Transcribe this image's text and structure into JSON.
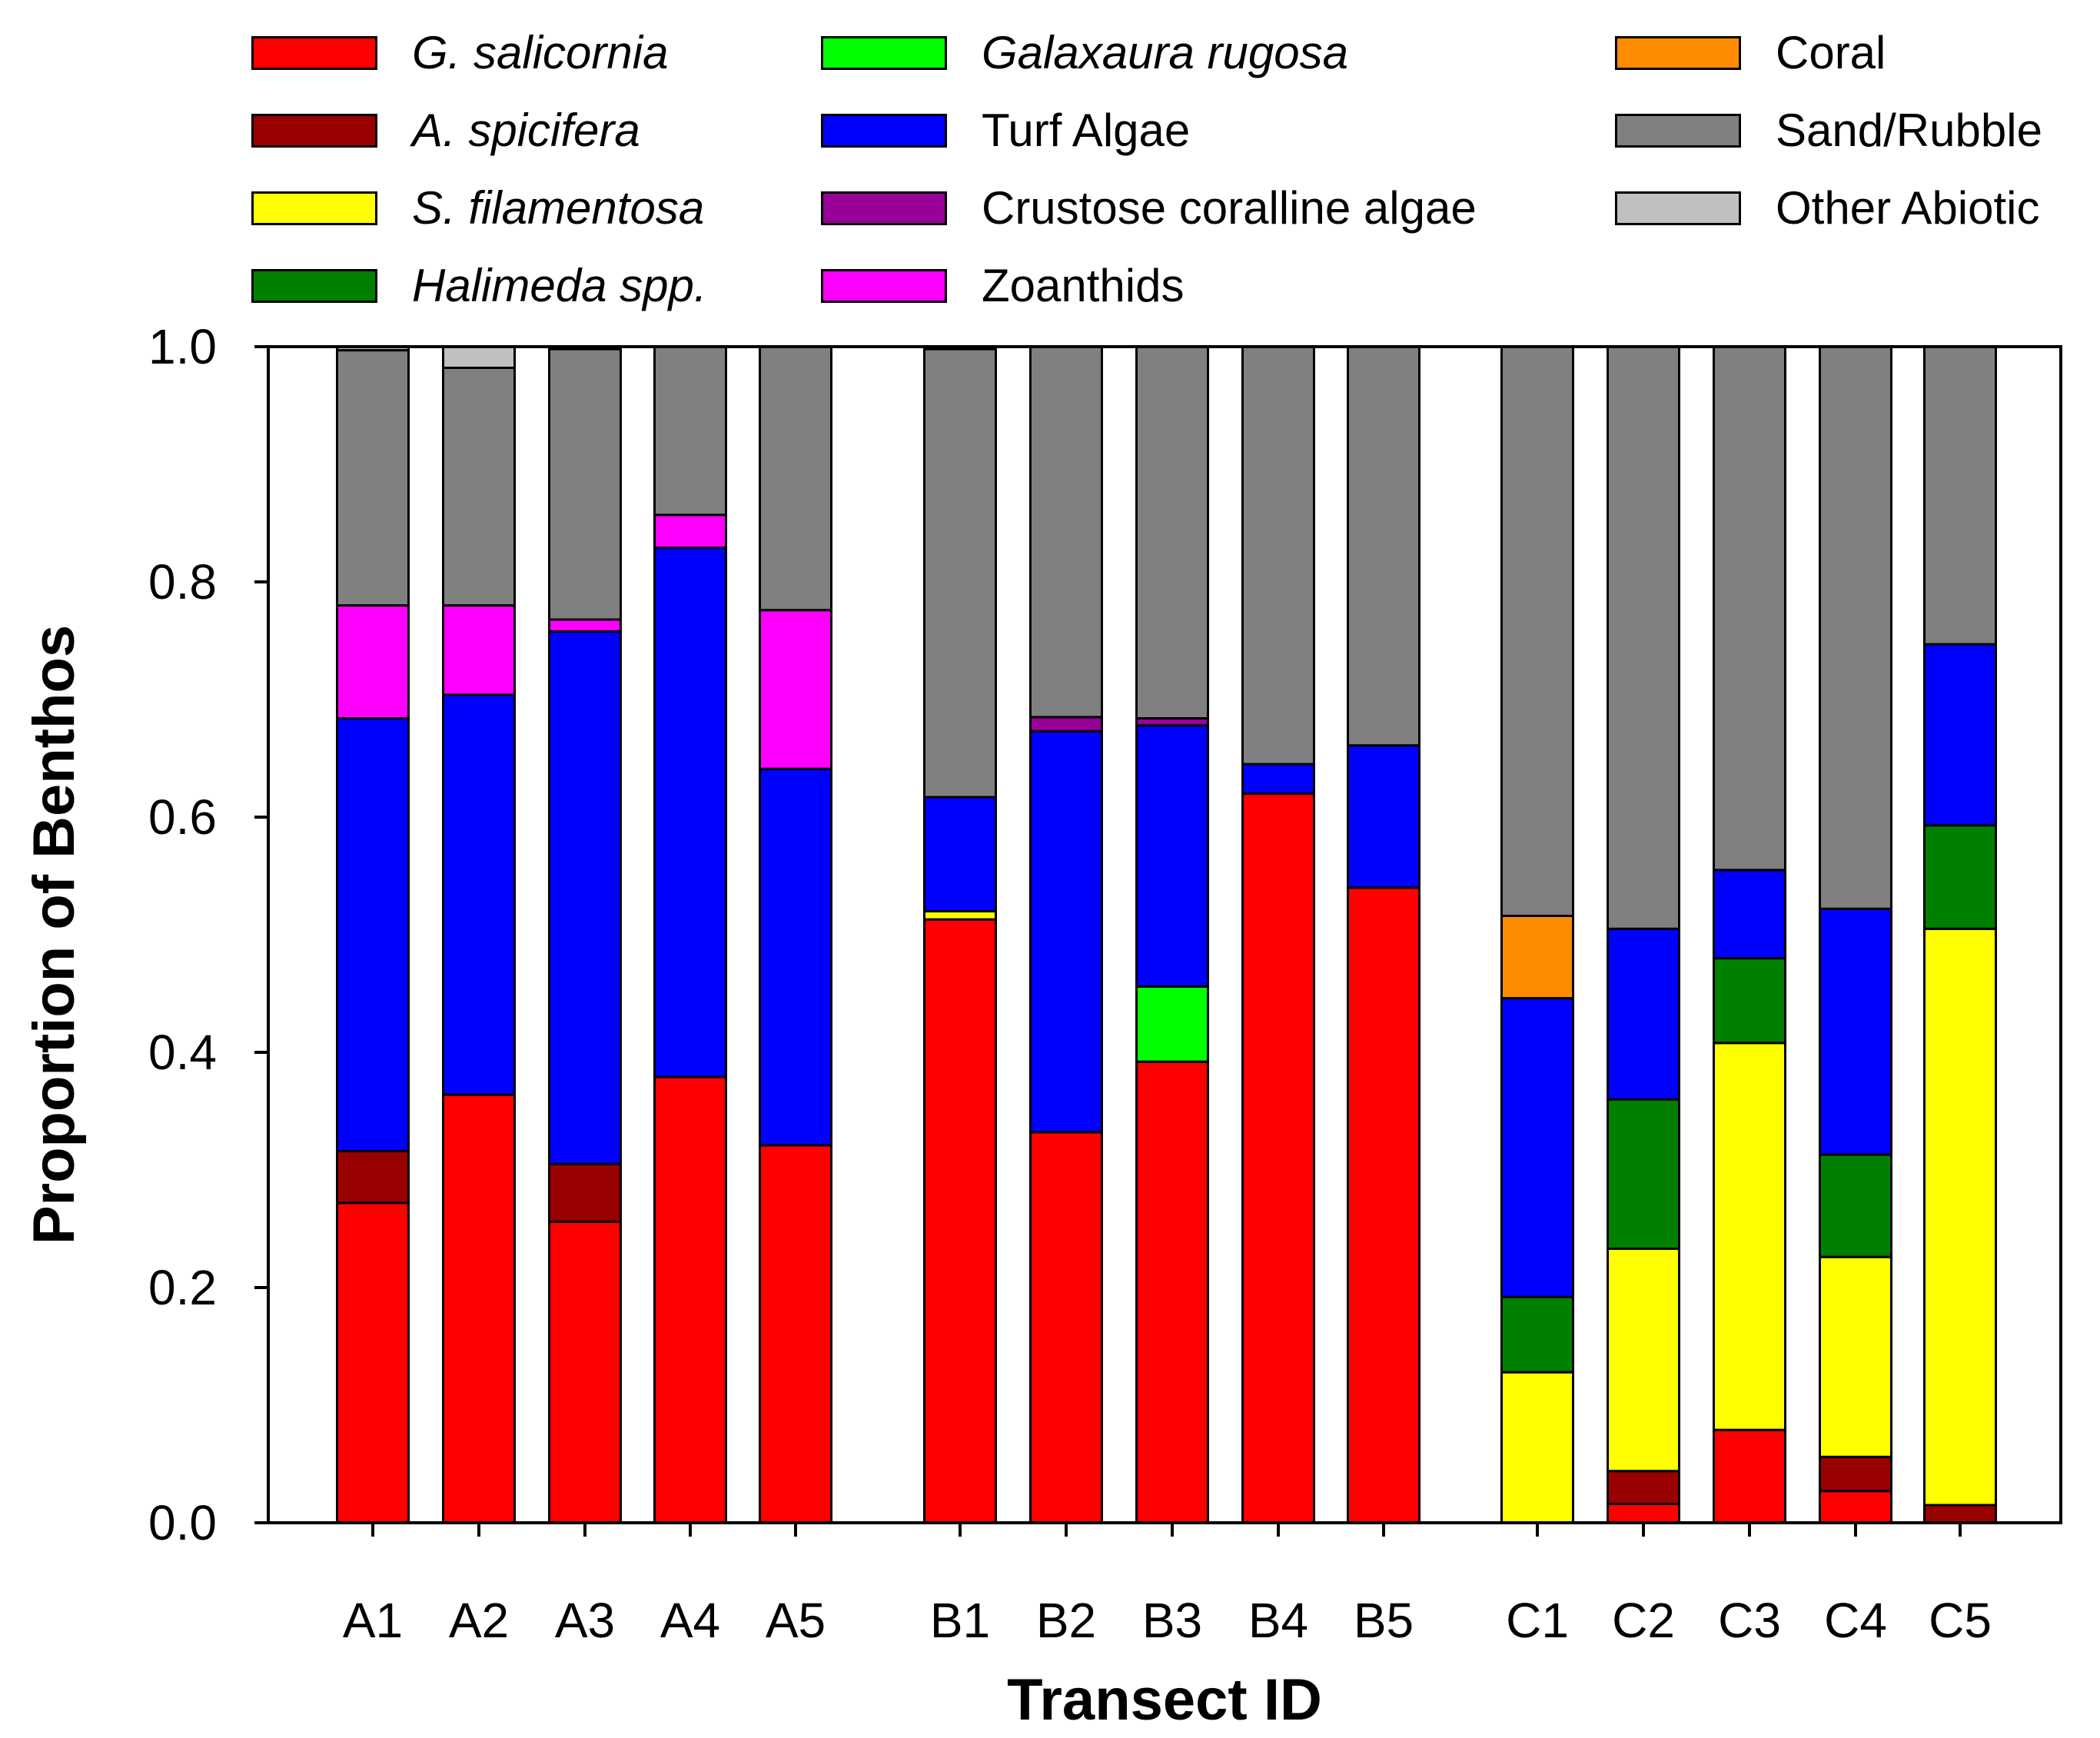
{
  "chart_data": {
    "type": "bar",
    "stacked": true,
    "xlabel": "Transect ID",
    "ylabel": "Proportion of Benthos",
    "ylim": [
      0,
      1
    ],
    "yticks": [
      "0.0",
      "0.2",
      "0.4",
      "0.6",
      "0.8",
      "1.0"
    ],
    "categories": [
      "A1",
      "A2",
      "A3",
      "A4",
      "A5",
      "B1",
      "B2",
      "B3",
      "B4",
      "B5",
      "C1",
      "C2",
      "C3",
      "C4",
      "C5"
    ],
    "series": [
      {
        "name": "G. salicornia",
        "italic": true,
        "color": "#ff0000",
        "values": [
          0.272,
          0.364,
          0.256,
          0.379,
          0.321,
          0.513,
          0.332,
          0.392,
          0.62,
          0.54,
          0.0,
          0.016,
          0.079,
          0.027,
          0.0
        ]
      },
      {
        "name": "A. spicifera",
        "italic": true,
        "color": "#990000",
        "values": [
          0.044,
          0.0,
          0.049,
          0.0,
          0.0,
          0.0,
          0.0,
          0.0,
          0.0,
          0.0,
          0.0,
          0.028,
          0.0,
          0.029,
          0.015
        ]
      },
      {
        "name": "S. filamentosa",
        "italic": true,
        "color": "#ffff00",
        "values": [
          0.0,
          0.0,
          0.0,
          0.0,
          0.0,
          0.007,
          0.0,
          0.0,
          0.0,
          0.0,
          0.128,
          0.189,
          0.329,
          0.17,
          0.49
        ]
      },
      {
        "name": "Halimeda spp.",
        "italic": true,
        "color": "#008000",
        "values": [
          0.0,
          0.0,
          0.0,
          0.0,
          0.0,
          0.0,
          0.0,
          0.0,
          0.0,
          0.0,
          0.064,
          0.127,
          0.072,
          0.087,
          0.088
        ]
      },
      {
        "name": "Galaxaura rugosa",
        "italic": true,
        "color": "#00ff00",
        "values": [
          0.0,
          0.0,
          0.0,
          0.0,
          0.0,
          0.0,
          0.0,
          0.064,
          0.0,
          0.0,
          0.0,
          0.0,
          0.0,
          0.0,
          0.0
        ]
      },
      {
        "name": "Turf Algae",
        "italic": false,
        "color": "#0000ff",
        "values": [
          0.368,
          0.34,
          0.453,
          0.45,
          0.32,
          0.097,
          0.341,
          0.222,
          0.025,
          0.121,
          0.254,
          0.145,
          0.075,
          0.209,
          0.154
        ]
      },
      {
        "name": "Crustose coralline algae",
        "italic": false,
        "color": "#990099",
        "values": [
          0.0,
          0.0,
          0.0,
          0.0,
          0.0,
          0.0,
          0.012,
          0.006,
          0.0,
          0.0,
          0.0,
          0.0,
          0.0,
          0.0,
          0.0
        ]
      },
      {
        "name": "Zoanthids",
        "italic": false,
        "color": "#ff00ff",
        "values": [
          0.096,
          0.076,
          0.01,
          0.028,
          0.135,
          0.0,
          0.0,
          0.0,
          0.0,
          0.0,
          0.0,
          0.0,
          0.0,
          0.0,
          0.0
        ]
      },
      {
        "name": "Coral",
        "italic": false,
        "color": "#ff8c00",
        "values": [
          0.0,
          0.0,
          0.0,
          0.0,
          0.0,
          0.0,
          0.0,
          0.0,
          0.0,
          0.0,
          0.07,
          0.0,
          0.0,
          0.0,
          0.0
        ]
      },
      {
        "name": "Sand/Rubble",
        "italic": false,
        "color": "#808080",
        "values": [
          0.217,
          0.202,
          0.23,
          0.143,
          0.224,
          0.381,
          0.315,
          0.316,
          0.355,
          0.339,
          0.484,
          0.495,
          0.445,
          0.478,
          0.253
        ]
      },
      {
        "name": "Other Abiotic",
        "italic": false,
        "color": "#c0c0c0",
        "values": [
          0.003,
          0.018,
          0.002,
          0.0,
          0.0,
          0.002,
          0.0,
          0.0,
          0.0,
          0.0,
          0.0,
          0.0,
          0.0,
          0.0,
          0.0
        ]
      }
    ]
  }
}
